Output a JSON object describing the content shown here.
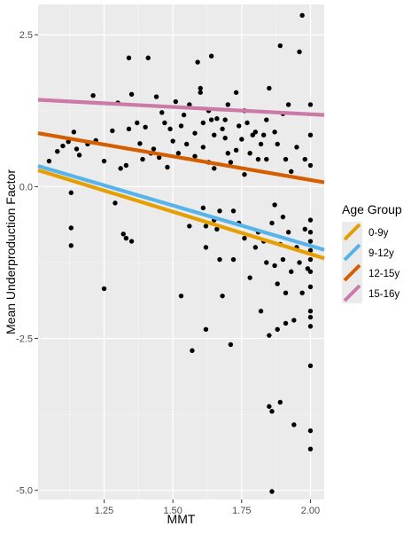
{
  "chart_data": {
    "type": "scatter",
    "xlabel": "MMT",
    "ylabel": "Mean Underproduction Factor",
    "xlim": [
      1.01,
      2.05
    ],
    "ylim": [
      -5.15,
      3.0
    ],
    "x_ticks": [
      1.25,
      1.5,
      1.75,
      2.0
    ],
    "x_tick_labels": [
      "1.25",
      "1.50",
      "1.75",
      "2.00"
    ],
    "y_ticks": [
      -5.0,
      -2.5,
      0.0,
      2.5
    ],
    "y_tick_labels": [
      "-5.0",
      "-2.5",
      "0.0",
      "2.5"
    ],
    "grid": true,
    "legend": {
      "title": "Age Group",
      "placement": "right",
      "entries": [
        {
          "label": "0-9y",
          "color": "#E69F00"
        },
        {
          "label": "9-12y",
          "color": "#56B4E9"
        },
        {
          "label": "12-15y",
          "color": "#D55E00"
        },
        {
          "label": "15-16y",
          "color": "#CC79A7"
        }
      ]
    },
    "fit_lines": [
      {
        "name": "0-9y",
        "color": "#E69F00",
        "x": [
          1.01,
          2.05
        ],
        "y": [
          0.27,
          -1.18
        ]
      },
      {
        "name": "9-12y",
        "color": "#56B4E9",
        "x": [
          1.01,
          2.05
        ],
        "y": [
          0.34,
          -1.04
        ]
      },
      {
        "name": "12-15y",
        "color": "#D55E00",
        "x": [
          1.01,
          2.05
        ],
        "y": [
          0.88,
          0.07
        ]
      },
      {
        "name": "15-16y",
        "color": "#CC79A7",
        "x": [
          1.01,
          2.05
        ],
        "y": [
          1.43,
          1.18
        ]
      }
    ],
    "points": [
      [
        1.05,
        0.42
      ],
      [
        1.08,
        0.58
      ],
      [
        1.1,
        0.67
      ],
      [
        1.12,
        0.74
      ],
      [
        1.13,
        -0.1
      ],
      [
        1.13,
        -0.68
      ],
      [
        1.13,
        -0.97
      ],
      [
        1.15,
        0.62
      ],
      [
        1.16,
        0.52
      ],
      [
        1.14,
        0.9
      ],
      [
        1.19,
        0.7
      ],
      [
        1.21,
        1.5
      ],
      [
        1.22,
        0.76
      ],
      [
        1.25,
        -1.68
      ],
      [
        1.25,
        0.42
      ],
      [
        1.28,
        0.92
      ],
      [
        1.29,
        -0.27
      ],
      [
        1.3,
        1.38
      ],
      [
        1.31,
        0.3
      ],
      [
        1.32,
        -0.78
      ],
      [
        1.33,
        0.35
      ],
      [
        1.33,
        -0.85
      ],
      [
        1.34,
        2.12
      ],
      [
        1.34,
        0.95
      ],
      [
        1.35,
        1.52
      ],
      [
        1.35,
        -0.9
      ],
      [
        1.37,
        1.05
      ],
      [
        1.38,
        0.71
      ],
      [
        1.39,
        0.45
      ],
      [
        1.4,
        0.98
      ],
      [
        1.41,
        2.12
      ],
      [
        1.42,
        0.55
      ],
      [
        1.43,
        0.62
      ],
      [
        1.44,
        1.48
      ],
      [
        1.45,
        0.48
      ],
      [
        1.46,
        1.22
      ],
      [
        1.47,
        1.05
      ],
      [
        1.48,
        0.32
      ],
      [
        1.49,
        0.95
      ],
      [
        1.5,
        0.75
      ],
      [
        1.51,
        1.4
      ],
      [
        1.52,
        0.55
      ],
      [
        1.53,
        -1.8
      ],
      [
        1.54,
        1.18
      ],
      [
        1.55,
        0.7
      ],
      [
        1.56,
        1.35
      ],
      [
        1.56,
        -0.65
      ],
      [
        1.57,
        -2.7
      ],
      [
        1.58,
        0.88
      ],
      [
        1.59,
        2.05
      ],
      [
        1.6,
        1.62
      ],
      [
        1.6,
        1.55
      ],
      [
        1.61,
        0.65
      ],
      [
        1.61,
        1.05
      ],
      [
        1.61,
        -0.35
      ],
      [
        1.62,
        -2.35
      ],
      [
        1.62,
        -0.65
      ],
      [
        1.62,
        -1.0
      ],
      [
        1.63,
        0.4
      ],
      [
        1.63,
        1.25
      ],
      [
        1.64,
        2.15
      ],
      [
        1.64,
        1.1
      ],
      [
        1.65,
        0.85
      ],
      [
        1.65,
        -0.55
      ],
      [
        1.65,
        0.3
      ],
      [
        1.66,
        1.12
      ],
      [
        1.66,
        -0.7
      ],
      [
        1.67,
        -1.2
      ],
      [
        1.67,
        -0.4
      ],
      [
        1.68,
        -1.8
      ],
      [
        1.68,
        0.95
      ],
      [
        1.69,
        0.8
      ],
      [
        1.7,
        1.35
      ],
      [
        1.7,
        0.55
      ],
      [
        1.71,
        -2.6
      ],
      [
        1.71,
        0.4
      ],
      [
        1.72,
        -0.4
      ],
      [
        1.72,
        -1.2
      ],
      [
        1.73,
        1.55
      ],
      [
        1.73,
        0.6
      ],
      [
        1.74,
        1.0
      ],
      [
        1.74,
        -0.6
      ],
      [
        1.75,
        0.78
      ],
      [
        1.76,
        -0.85
      ],
      [
        1.76,
        0.2
      ],
      [
        1.77,
        1.05
      ],
      [
        1.78,
        -1.5
      ],
      [
        1.78,
        0.55
      ],
      [
        1.79,
        0.85
      ],
      [
        1.8,
        0.9
      ],
      [
        1.8,
        -1.0
      ],
      [
        1.81,
        0.45
      ],
      [
        1.81,
        -0.75
      ],
      [
        1.82,
        -2.05
      ],
      [
        1.82,
        0.7
      ],
      [
        1.83,
        0.85
      ],
      [
        1.83,
        -0.9
      ],
      [
        1.84,
        1.1
      ],
      [
        1.84,
        -1.25
      ],
      [
        1.84,
        0.45
      ],
      [
        1.85,
        1.62
      ],
      [
        1.85,
        -3.62
      ],
      [
        1.85,
        -2.45
      ],
      [
        1.86,
        -5.02
      ],
      [
        1.86,
        -3.7
      ],
      [
        1.86,
        -0.6
      ],
      [
        1.87,
        -1.3
      ],
      [
        1.87,
        0.9
      ],
      [
        1.87,
        -0.3
      ],
      [
        1.88,
        -2.35
      ],
      [
        1.88,
        -1.6
      ],
      [
        1.88,
        0.7
      ],
      [
        1.89,
        2.32
      ],
      [
        1.89,
        -0.95
      ],
      [
        1.89,
        -3.55
      ],
      [
        1.9,
        -1.2
      ],
      [
        1.9,
        -0.5
      ],
      [
        1.9,
        1.2
      ],
      [
        1.91,
        -2.25
      ],
      [
        1.91,
        -1.75
      ],
      [
        1.91,
        0.45
      ],
      [
        1.92,
        -0.75
      ],
      [
        1.92,
        1.35
      ],
      [
        1.93,
        -1.4
      ],
      [
        1.93,
        0.25
      ],
      [
        1.94,
        -3.92
      ],
      [
        1.94,
        -2.2
      ],
      [
        1.95,
        -1.0
      ],
      [
        1.95,
        0.65
      ],
      [
        1.96,
        -1.25
      ],
      [
        1.96,
        2.22
      ],
      [
        1.97,
        2.82
      ],
      [
        1.97,
        -1.75
      ],
      [
        1.98,
        -0.7
      ],
      [
        1.98,
        0.45
      ],
      [
        1.99,
        -1.35
      ],
      [
        2.0,
        1.35
      ],
      [
        2.0,
        0.85
      ],
      [
        2.0,
        0.35
      ],
      [
        2.0,
        -0.55
      ],
      [
        2.0,
        -0.75
      ],
      [
        2.0,
        -0.9
      ],
      [
        2.0,
        -1.05
      ],
      [
        2.0,
        -1.2
      ],
      [
        2.0,
        -1.4
      ],
      [
        2.0,
        -1.65
      ],
      [
        2.0,
        -2.05
      ],
      [
        2.0,
        -2.15
      ],
      [
        2.0,
        -2.3
      ],
      [
        2.0,
        -2.95
      ],
      [
        2.0,
        -4.02
      ],
      [
        2.0,
        -4.32
      ],
      [
        1.76,
        1.25
      ],
      [
        1.69,
        1.1
      ],
      [
        1.58,
        0.5
      ],
      [
        1.53,
        1.0
      ]
    ]
  }
}
